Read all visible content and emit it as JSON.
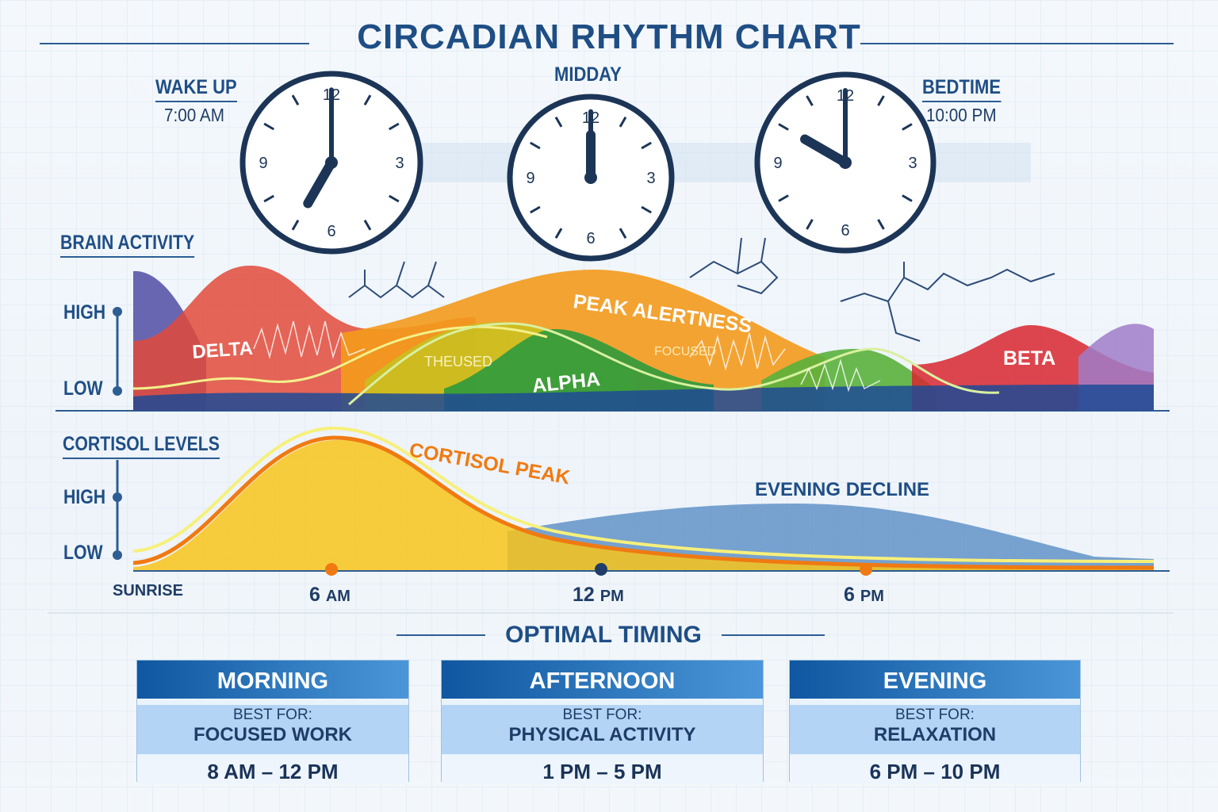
{
  "title": "CIRCADIAN RHYTHM CHART",
  "clocks": [
    {
      "label": "WAKE UP",
      "time": "7:00 AM",
      "hour": 7,
      "minute": 0
    },
    {
      "label": "MIDDAY",
      "time": "",
      "hour": 12,
      "minute": 0
    },
    {
      "label": "BEDTIME",
      "time": "10:00 PM",
      "hour": 10,
      "minute": 0
    }
  ],
  "clock_numerals": [
    "12",
    "3",
    "6",
    "9"
  ],
  "brain_activity": {
    "label": "BRAIN ACTIVITY",
    "high": "HIGH",
    "low": "LOW",
    "annotations": {
      "delta": "DELTA",
      "theused": "THEUSED",
      "alpha": "ALPHA",
      "peak": "PEAK ALERTNESS",
      "focused": "FOCUSED",
      "beta": "BETA"
    }
  },
  "cortisol": {
    "label": "CORTISOL LEVELS",
    "high": "HIGH",
    "low": "LOW",
    "peak": "CORTISOL PEAK",
    "decline": "EVENING DECLINE"
  },
  "x_axis": {
    "sunrise": "SUNRISE",
    "ticks": [
      {
        "num": "6",
        "unit": "AM"
      },
      {
        "num": "12",
        "unit": "PM"
      },
      {
        "num": "6",
        "unit": "PM"
      }
    ]
  },
  "optimal_timing": {
    "title": "OPTIMAL TIMING",
    "cards": [
      {
        "period": "MORNING",
        "best_for_label": "BEST FOR:",
        "activity": "FOCUSED WORK",
        "range": "8 AM – 12 PM"
      },
      {
        "period": "AFTERNOON",
        "best_for_label": "BEST FOR:",
        "activity": "PHYSICAL ACTIVITY",
        "range": "1 PM – 5 PM"
      },
      {
        "period": "EVENING",
        "best_for_label": "BEST FOR:",
        "activity": "RELAXATION",
        "range": "6 PM – 10 PM"
      }
    ]
  },
  "colors": {
    "primary": "#1f4e85",
    "delta": "#d8262e",
    "alertness": "#f29a1a",
    "alpha": "#2f9a3a",
    "beta": "#d8262e",
    "cortisol": "#f7c41a",
    "cortisol_line": "#f07a12",
    "decline": "#4f86c0"
  }
}
